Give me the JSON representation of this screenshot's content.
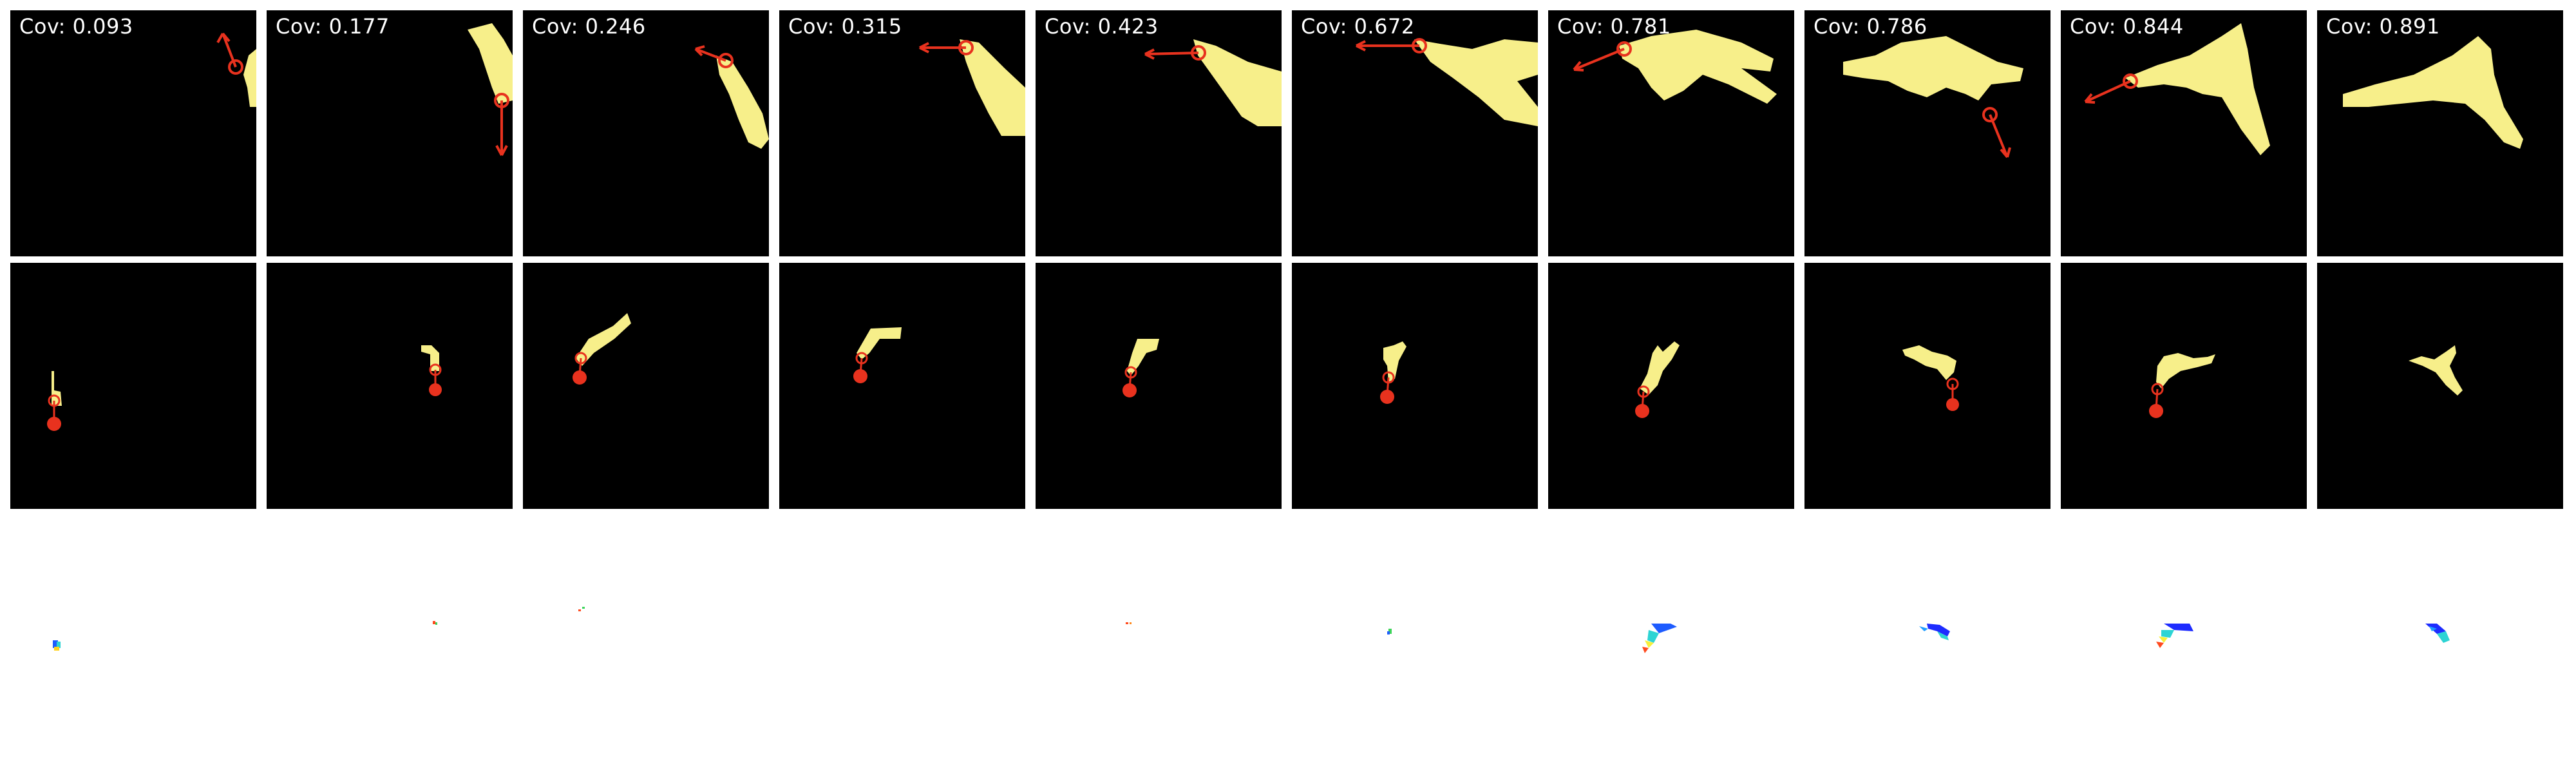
{
  "colors": {
    "cloth": "#f7ef8a",
    "cloth_shade": "#d9cf6a",
    "action": "#e8321e",
    "panel_bg": "#000000",
    "page_bg": "#ffffff"
  },
  "frames": [
    {
      "label": "Cov: 0.093"
    },
    {
      "label": "Cov: 0.177"
    },
    {
      "label": "Cov: 0.246"
    },
    {
      "label": "Cov: 0.315"
    },
    {
      "label": "Cov: 0.423"
    },
    {
      "label": "Cov: 0.672"
    },
    {
      "label": "Cov: 0.781"
    },
    {
      "label": "Cov: 0.786"
    },
    {
      "label": "Cov: 0.844"
    },
    {
      "label": "Cov: 0.891"
    }
  ]
}
